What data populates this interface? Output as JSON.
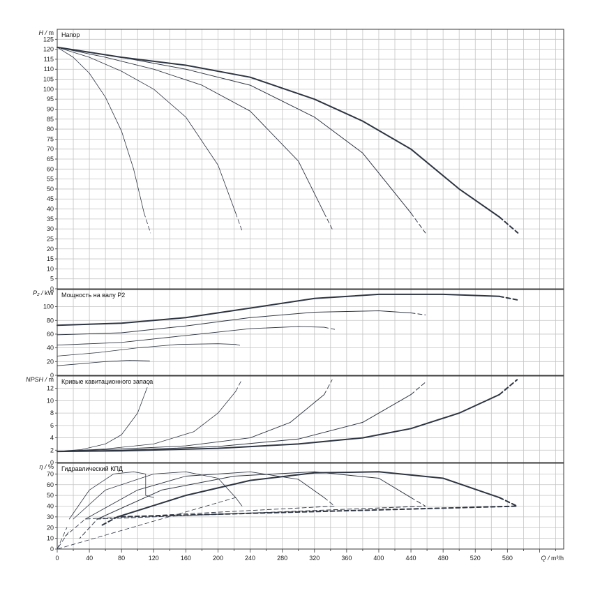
{
  "chart_data": [
    {
      "type": "line",
      "title": "Напор",
      "ylabel_sym": "H",
      "ylabel_unit": "m",
      "xlabel_sym": "Q",
      "xlabel_unit": "m³/h",
      "xlim": [
        0,
        630
      ],
      "xticks": [
        0,
        40,
        80,
        120,
        160,
        200,
        240,
        280,
        320,
        360,
        400,
        440,
        480,
        520,
        560
      ],
      "ylim": [
        0,
        130
      ],
      "yticks": [
        0,
        5,
        10,
        15,
        20,
        25,
        30,
        35,
        40,
        45,
        50,
        55,
        60,
        65,
        70,
        75,
        80,
        85,
        90,
        95,
        100,
        105,
        110,
        115,
        120,
        125
      ],
      "grid": true,
      "series": [
        {
          "width": 0.8,
          "points": [
            [
              0,
              121
            ],
            [
              20,
              116
            ],
            [
              40,
              108
            ],
            [
              60,
              96
            ],
            [
              80,
              79
            ],
            [
              95,
              60
            ],
            [
              108,
              38
            ]
          ],
          "dashed": [
            [
              108,
              38
            ],
            [
              116,
              28
            ]
          ]
        },
        {
          "width": 0.8,
          "points": [
            [
              0,
              121
            ],
            [
              40,
              116
            ],
            [
              80,
              109
            ],
            [
              120,
              100
            ],
            [
              160,
              86
            ],
            [
              200,
              62
            ],
            [
              222,
              38
            ]
          ],
          "dashed": [
            [
              222,
              38
            ],
            [
              230,
              29
            ]
          ]
        },
        {
          "width": 0.9,
          "points": [
            [
              0,
              121
            ],
            [
              60,
              116
            ],
            [
              120,
              110
            ],
            [
              180,
              102
            ],
            [
              240,
              89
            ],
            [
              300,
              64
            ],
            [
              332,
              38
            ]
          ],
          "dashed": [
            [
              332,
              38
            ],
            [
              342,
              30
            ]
          ]
        },
        {
          "width": 1.0,
          "points": [
            [
              0,
              121
            ],
            [
              80,
              116
            ],
            [
              160,
              110
            ],
            [
              240,
              102
            ],
            [
              320,
              86
            ],
            [
              380,
              68
            ],
            [
              440,
              38
            ]
          ],
          "dashed": [
            [
              440,
              38
            ],
            [
              458,
              28
            ]
          ]
        },
        {
          "width": 2.0,
          "points": [
            [
              0,
              121
            ],
            [
              80,
              116
            ],
            [
              160,
              112
            ],
            [
              240,
              106
            ],
            [
              320,
              95
            ],
            [
              380,
              84
            ],
            [
              440,
              70
            ],
            [
              500,
              50
            ],
            [
              550,
              36
            ]
          ],
          "dashed": [
            [
              550,
              36
            ],
            [
              573,
              28
            ]
          ]
        }
      ]
    },
    {
      "type": "line",
      "title": "Мощность на валу P2",
      "ylabel_sym": "P₂",
      "ylabel_unit": "kW",
      "xlim": [
        0,
        630
      ],
      "ylim": [
        0,
        125
      ],
      "yticks": [
        0,
        20,
        40,
        60,
        80,
        100
      ],
      "grid": true,
      "series": [
        {
          "width": 0.8,
          "points": [
            [
              0,
              14
            ],
            [
              30,
              17
            ],
            [
              60,
              20
            ],
            [
              90,
              22
            ],
            [
              115,
              21
            ]
          ]
        },
        {
          "width": 0.8,
          "points": [
            [
              0,
              28
            ],
            [
              50,
              33
            ],
            [
              100,
              40
            ],
            [
              150,
              45
            ],
            [
              200,
              46
            ],
            [
              222,
              45
            ]
          ],
          "dashed": [
            [
              222,
              45
            ],
            [
              230,
              43
            ]
          ]
        },
        {
          "width": 0.9,
          "points": [
            [
              0,
              44
            ],
            [
              80,
              48
            ],
            [
              160,
              58
            ],
            [
              240,
              68
            ],
            [
              300,
              71
            ],
            [
              332,
              70
            ]
          ],
          "dashed": [
            [
              332,
              70
            ],
            [
              345,
              67
            ]
          ]
        },
        {
          "width": 1.0,
          "points": [
            [
              0,
              59
            ],
            [
              80,
              62
            ],
            [
              160,
              72
            ],
            [
              240,
              84
            ],
            [
              320,
              92
            ],
            [
              400,
              94
            ],
            [
              440,
              91
            ]
          ],
          "dashed": [
            [
              440,
              91
            ],
            [
              458,
              88
            ]
          ]
        },
        {
          "width": 2.0,
          "points": [
            [
              0,
              73
            ],
            [
              80,
              76
            ],
            [
              160,
              84
            ],
            [
              240,
              98
            ],
            [
              320,
              112
            ],
            [
              400,
              118
            ],
            [
              480,
              118
            ],
            [
              550,
              115
            ]
          ],
          "dashed": [
            [
              550,
              115
            ],
            [
              572,
              110
            ]
          ]
        }
      ]
    },
    {
      "type": "line",
      "title": "Кривые кавитационного запаса",
      "ylabel_sym": "NPSH",
      "ylabel_unit": "m",
      "xlim": [
        0,
        630
      ],
      "ylim": [
        0,
        14
      ],
      "yticks": [
        0,
        2,
        4,
        6,
        8,
        10,
        12
      ],
      "grid": true,
      "series": [
        {
          "width": 0.8,
          "points": [
            [
              0,
              1.8
            ],
            [
              30,
              2.1
            ],
            [
              60,
              3.0
            ],
            [
              80,
              4.5
            ],
            [
              100,
              8.0
            ],
            [
              110,
              11.5
            ]
          ],
          "dashed": [
            [
              110,
              11.5
            ],
            [
              116,
              13.5
            ]
          ]
        },
        {
          "width": 0.8,
          "points": [
            [
              0,
              1.8
            ],
            [
              60,
              2.2
            ],
            [
              120,
              3.0
            ],
            [
              170,
              5.0
            ],
            [
              200,
              8.0
            ],
            [
              222,
              11.5
            ]
          ],
          "dashed": [
            [
              222,
              11.5
            ],
            [
              230,
              13.5
            ]
          ]
        },
        {
          "width": 0.9,
          "points": [
            [
              0,
              1.8
            ],
            [
              80,
              2.2
            ],
            [
              160,
              2.7
            ],
            [
              240,
              4.0
            ],
            [
              290,
              6.5
            ],
            [
              332,
              11.0
            ]
          ],
          "dashed": [
            [
              332,
              11.0
            ],
            [
              342,
              13.4
            ]
          ]
        },
        {
          "width": 1.0,
          "points": [
            [
              0,
              1.8
            ],
            [
              80,
              2.0
            ],
            [
              200,
              2.6
            ],
            [
              300,
              3.8
            ],
            [
              380,
              6.5
            ],
            [
              440,
              11.0
            ]
          ],
          "dashed": [
            [
              440,
              11.0
            ],
            [
              458,
              13.0
            ]
          ]
        },
        {
          "width": 2.0,
          "points": [
            [
              0,
              1.8
            ],
            [
              80,
              1.9
            ],
            [
              200,
              2.3
            ],
            [
              300,
              3.0
            ],
            [
              380,
              4.0
            ],
            [
              440,
              5.5
            ],
            [
              500,
              8.0
            ],
            [
              550,
              11.0
            ]
          ],
          "dashed": [
            [
              550,
              11.0
            ],
            [
              572,
              13.4
            ]
          ]
        }
      ]
    },
    {
      "type": "line",
      "title": "Гидравлический КПД",
      "ylabel_sym": "η",
      "ylabel_unit": "%",
      "xlim": [
        0,
        630
      ],
      "ylim": [
        0,
        80
      ],
      "yticks": [
        0,
        10,
        20,
        30,
        40,
        50,
        60,
        70
      ],
      "grid": true,
      "series": [
        {
          "width": 0.8,
          "points": [
            [
              15,
              28
            ],
            [
              40,
              55
            ],
            [
              70,
              70
            ],
            [
              95,
              72
            ],
            [
              110,
              70
            ],
            [
              110,
              50
            ],
            [
              120,
              48
            ]
          ],
          "dashed": [
            [
              0,
              0
            ],
            [
              12,
              20
            ]
          ]
        },
        {
          "width": 0.8,
          "points": [
            [
              20,
              28
            ],
            [
              60,
              55
            ],
            [
              120,
              70
            ],
            [
              160,
              72
            ],
            [
              200,
              66
            ],
            [
              222,
              48
            ]
          ],
          "dashed": [
            [
              222,
              48
            ],
            [
              230,
              40
            ],
            [
              222,
              48
            ],
            [
              0,
              0
            ],
            [
              16,
              18
            ]
          ]
        },
        {
          "width": 0.9,
          "points": [
            [
              35,
              28
            ],
            [
              100,
              55
            ],
            [
              160,
              68
            ],
            [
              240,
              72
            ],
            [
              300,
              65
            ],
            [
              332,
              48
            ]
          ],
          "dashed": [
            [
              332,
              48
            ],
            [
              345,
              40
            ],
            [
              35,
              28
            ],
            [
              10,
              12
            ]
          ]
        },
        {
          "width": 1.0,
          "points": [
            [
              50,
              28
            ],
            [
              130,
              55
            ],
            [
              220,
              68
            ],
            [
              320,
              72
            ],
            [
              400,
              66
            ],
            [
              440,
              48
            ]
          ],
          "dashed": [
            [
              440,
              48
            ],
            [
              458,
              40
            ],
            [
              50,
              28
            ],
            [
              28,
              10
            ]
          ]
        },
        {
          "width": 2.0,
          "points": [
            [
              75,
              30
            ],
            [
              160,
              50
            ],
            [
              240,
              64
            ],
            [
              320,
              71
            ],
            [
              400,
              72
            ],
            [
              480,
              66
            ],
            [
              550,
              48
            ]
          ],
          "dashed": [
            [
              550,
              48
            ],
            [
              572,
              40
            ],
            [
              75,
              30
            ],
            [
              55,
              22
            ]
          ]
        }
      ]
    }
  ]
}
